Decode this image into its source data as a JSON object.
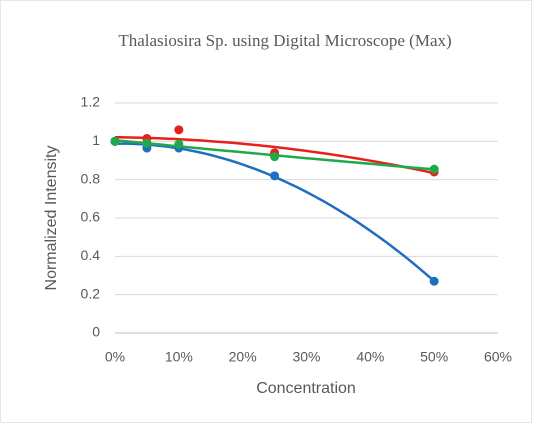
{
  "chart_data": {
    "type": "scatter",
    "title": "Thalasiosira Sp. using Digital Microscope (Max)",
    "xlabel": "Concentration",
    "ylabel": "Normalized Intensity",
    "xlim": [
      0,
      60
    ],
    "xticks": [
      {
        "value": 0,
        "label": "0%"
      },
      {
        "value": 10,
        "label": "10%"
      },
      {
        "value": 20,
        "label": "20%"
      },
      {
        "value": 30,
        "label": "30%"
      },
      {
        "value": 40,
        "label": "40%"
      },
      {
        "value": 50,
        "label": "50%"
      },
      {
        "value": 60,
        "label": "60%"
      }
    ],
    "ylim": [
      0,
      1.2
    ],
    "yticks": [
      0,
      0.2,
      0.4,
      0.6,
      0.8,
      1,
      1.2
    ],
    "grid": true,
    "trendline": "polynomial",
    "series": [
      {
        "color": "#1f6fc0",
        "x": [
          0,
          5,
          10,
          25,
          50
        ],
        "values": [
          1.0,
          0.965,
          0.965,
          0.82,
          0.27
        ]
      },
      {
        "color": "#e8201c",
        "x": [
          0,
          5,
          10,
          25,
          50
        ],
        "values": [
          1.0,
          1.015,
          1.06,
          0.94,
          0.84
        ]
      },
      {
        "color": "#1faa4a",
        "x": [
          0,
          5,
          10,
          25,
          50
        ],
        "values": [
          1.0,
          0.99,
          0.985,
          0.92,
          0.855
        ]
      }
    ]
  }
}
